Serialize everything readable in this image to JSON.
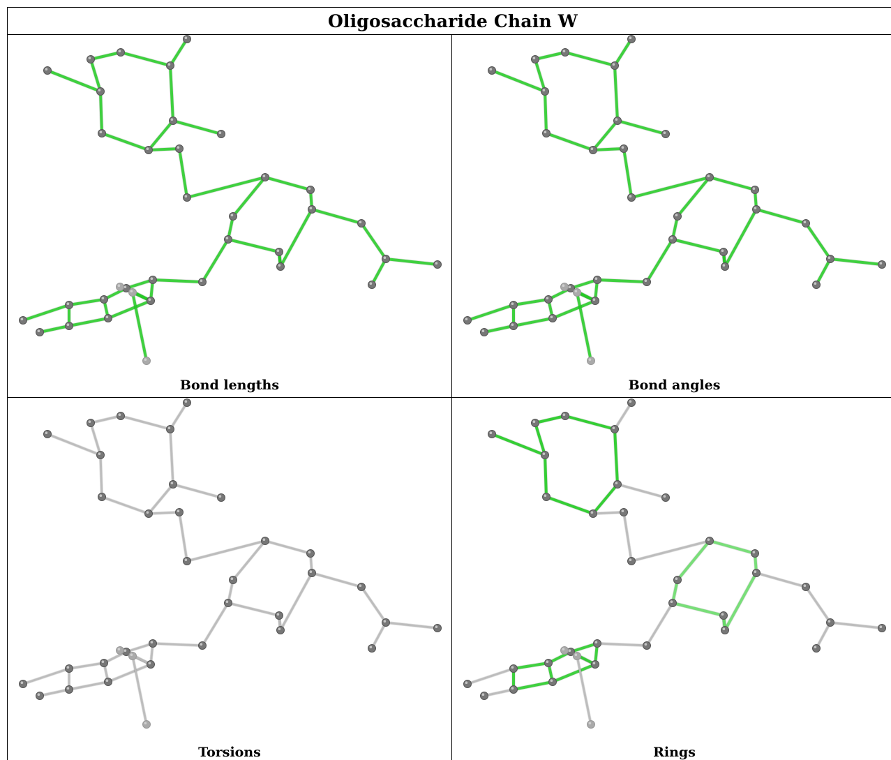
{
  "title": "Oligosaccharide Chain W",
  "panels": [
    {
      "caption": "Bond lengths",
      "mode": "lengths"
    },
    {
      "caption": "Bond angles",
      "mode": "angles"
    },
    {
      "caption": "Torsions",
      "mode": "torsions"
    },
    {
      "caption": "Rings",
      "mode": "rings"
    }
  ],
  "colors": {
    "green": "#22cc22",
    "light_green": "#66dd66",
    "dark_green": "#228822",
    "magenta": "#dd33dd",
    "grey": "#bbbbbb",
    "dark_grey": "#888888",
    "atom": "#777777",
    "atom_light": "#aaaaaa"
  }
}
